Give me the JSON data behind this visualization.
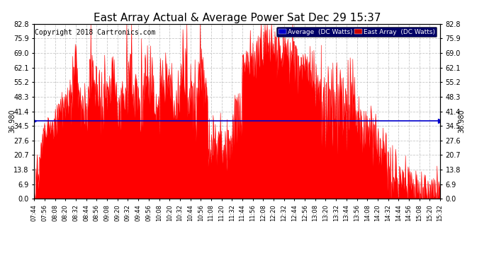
{
  "title": "East Array Actual & Average Power Sat Dec 29 15:37",
  "copyright": "Copyright 2018 Cartronics.com",
  "average_value": 36.98,
  "ymin": 0.0,
  "ymax": 82.8,
  "yticks": [
    0.0,
    6.9,
    13.8,
    20.7,
    27.6,
    34.5,
    41.4,
    48.3,
    55.2,
    62.1,
    69.0,
    75.9,
    82.8
  ],
  "x_tick_labels": [
    "07:44",
    "07:56",
    "08:08",
    "08:20",
    "08:32",
    "08:44",
    "08:56",
    "09:08",
    "09:20",
    "09:32",
    "09:44",
    "09:56",
    "10:08",
    "10:20",
    "10:32",
    "10:44",
    "10:56",
    "11:08",
    "11:20",
    "11:32",
    "11:44",
    "11:56",
    "12:08",
    "12:20",
    "12:32",
    "12:44",
    "12:56",
    "13:08",
    "13:20",
    "13:32",
    "13:44",
    "13:56",
    "14:08",
    "14:20",
    "14:32",
    "14:44",
    "14:56",
    "15:08",
    "15:20",
    "15:32"
  ],
  "area_color": "#FF0000",
  "average_line_color": "#0000CC",
  "background_color": "#FFFFFF",
  "grid_color": "#BBBBBB",
  "title_fontsize": 11,
  "copyright_fontsize": 7,
  "legend_avg_bg": "#0000CC",
  "legend_east_bg": "#CC0000",
  "legend_text_color": "#FFFFFF",
  "fig_width": 6.9,
  "fig_height": 3.75,
  "dpi": 100
}
